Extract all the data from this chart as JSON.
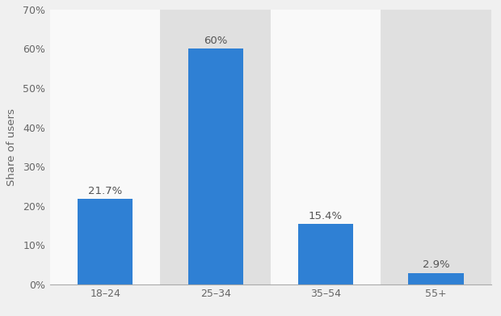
{
  "categories": [
    "18–24",
    "25–34",
    "35–54",
    "55+"
  ],
  "values": [
    21.7,
    60.0,
    15.4,
    2.9
  ],
  "labels": [
    "21.7%",
    "60%",
    "15.4%",
    "2.9%"
  ],
  "bar_color": "#2f80d4",
  "ylabel": "Share of users",
  "ylim": [
    0,
    70
  ],
  "yticks": [
    0,
    10,
    20,
    30,
    40,
    50,
    60,
    70
  ],
  "ytick_labels": [
    "0%",
    "10%",
    "20%",
    "30%",
    "40%",
    "50%",
    "60%",
    "70%"
  ],
  "figure_bg_color": "#f0f0f0",
  "plot_bg_color": "#f0f0f0",
  "stripe_color": "#e0e0e0",
  "white_stripe_color": "#f9f9f9",
  "bar_width": 0.5,
  "label_fontsize": 9.5,
  "tick_fontsize": 9,
  "ylabel_fontsize": 9.5,
  "stripe_indices": [
    1,
    3
  ],
  "white_stripe_indices": [
    0,
    2
  ]
}
